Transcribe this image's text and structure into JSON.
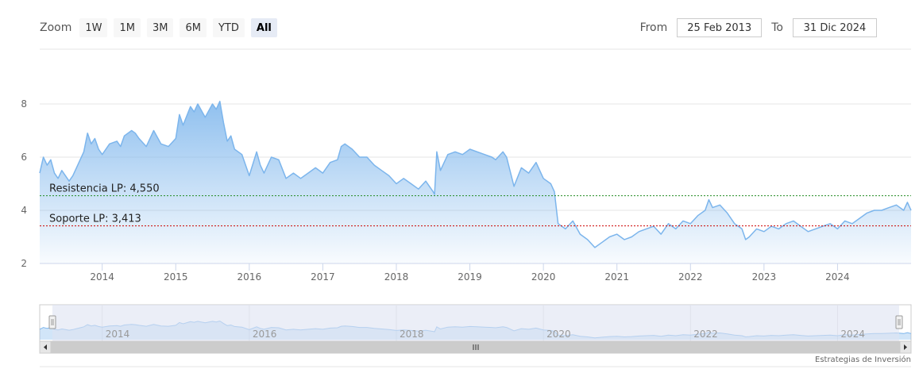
{
  "zoom": {
    "label": "Zoom",
    "buttons": [
      "1W",
      "1M",
      "3M",
      "6M",
      "YTD",
      "All"
    ],
    "active": "All"
  },
  "range": {
    "from_label": "From",
    "from_value": "25 Feb 2013",
    "to_label": "To",
    "to_value": "31 Dic 2024"
  },
  "credit": "Estrategias de Inversión",
  "colors": {
    "line": "#7cb5ec",
    "resistance": "#228B22",
    "support": "#cc0000",
    "navigator_mask": "#dde3f2"
  },
  "chart_data": {
    "type": "area",
    "x_unit": "year (decimal)",
    "xlim": [
      2013.15,
      2025.0
    ],
    "ylim": [
      2,
      8
    ],
    "y_ticks": [
      2,
      4,
      6,
      8
    ],
    "x_ticks": [
      "2014",
      "2015",
      "2016",
      "2017",
      "2018",
      "2019",
      "2020",
      "2021",
      "2022",
      "2023",
      "2024"
    ],
    "navigator_ticks": [
      "2014",
      "2016",
      "2018",
      "2020",
      "2022",
      "2024"
    ],
    "grid": true,
    "reference_lines": [
      {
        "label": "Resistencia LP: 4,550",
        "value": 4.55,
        "color": "#228B22"
      },
      {
        "label": "Soporte LP: 3,413",
        "value": 3.413,
        "color": "#cc0000"
      }
    ],
    "series": [
      {
        "x": [
          2013.15,
          2013.2,
          2013.25,
          2013.3,
          2013.35,
          2013.4,
          2013.45,
          2013.5,
          2013.55,
          2013.6,
          2013.65,
          2013.7,
          2013.75,
          2013.8,
          2013.85,
          2013.9,
          2013.95,
          2014.0,
          2014.1,
          2014.2,
          2014.25,
          2014.3,
          2014.4,
          2014.45,
          2014.5,
          2014.6,
          2014.7,
          2014.8,
          2014.9,
          2015.0,
          2015.05,
          2015.1,
          2015.2,
          2015.25,
          2015.3,
          2015.4,
          2015.5,
          2015.55,
          2015.6,
          2015.65,
          2015.7,
          2015.75,
          2015.8,
          2015.9,
          2016.0,
          2016.1,
          2016.15,
          2016.2,
          2016.3,
          2016.4,
          2016.5,
          2016.6,
          2016.7,
          2016.8,
          2016.9,
          2017.0,
          2017.1,
          2017.2,
          2017.25,
          2017.3,
          2017.4,
          2017.5,
          2017.6,
          2017.7,
          2017.8,
          2017.9,
          2018.0,
          2018.1,
          2018.2,
          2018.3,
          2018.4,
          2018.5,
          2018.52,
          2018.55,
          2018.6,
          2018.7,
          2018.8,
          2018.9,
          2019.0,
          2019.1,
          2019.2,
          2019.3,
          2019.35,
          2019.45,
          2019.5,
          2019.6,
          2019.7,
          2019.8,
          2019.9,
          2020.0,
          2020.1,
          2020.15,
          2020.2,
          2020.3,
          2020.4,
          2020.5,
          2020.6,
          2020.7,
          2020.8,
          2020.9,
          2021.0,
          2021.1,
          2021.2,
          2021.3,
          2021.4,
          2021.5,
          2021.6,
          2021.7,
          2021.8,
          2021.9,
          2022.0,
          2022.1,
          2022.2,
          2022.25,
          2022.3,
          2022.4,
          2022.5,
          2022.6,
          2022.7,
          2022.75,
          2022.8,
          2022.9,
          2023.0,
          2023.1,
          2023.2,
          2023.3,
          2023.4,
          2023.5,
          2023.6,
          2023.7,
          2023.8,
          2023.9,
          2024.0,
          2024.1,
          2024.2,
          2024.3,
          2024.4,
          2024.5,
          2024.6,
          2024.7,
          2024.8,
          2024.9,
          2024.95,
          2025.0
        ],
        "values": [
          5.4,
          6.0,
          5.7,
          5.9,
          5.4,
          5.2,
          5.5,
          5.3,
          5.1,
          5.3,
          5.6,
          5.9,
          6.2,
          6.9,
          6.5,
          6.7,
          6.3,
          6.1,
          6.5,
          6.6,
          6.4,
          6.8,
          7.0,
          6.9,
          6.7,
          6.4,
          7.0,
          6.5,
          6.4,
          6.7,
          7.6,
          7.2,
          7.9,
          7.7,
          8.0,
          7.5,
          8.0,
          7.8,
          8.1,
          7.3,
          6.6,
          6.8,
          6.3,
          6.1,
          5.3,
          6.2,
          5.7,
          5.4,
          6.0,
          5.9,
          5.2,
          5.4,
          5.2,
          5.4,
          5.6,
          5.4,
          5.8,
          5.9,
          6.4,
          6.5,
          6.3,
          6.0,
          6.0,
          5.7,
          5.5,
          5.3,
          5.0,
          5.2,
          5.0,
          4.8,
          5.1,
          4.7,
          4.6,
          6.2,
          5.5,
          6.1,
          6.2,
          6.1,
          6.3,
          6.2,
          6.1,
          6.0,
          5.9,
          6.2,
          6.0,
          4.9,
          5.6,
          5.4,
          5.8,
          5.2,
          5.0,
          4.7,
          3.5,
          3.3,
          3.6,
          3.1,
          2.9,
          2.6,
          2.8,
          3.0,
          3.1,
          2.9,
          3.0,
          3.2,
          3.3,
          3.4,
          3.1,
          3.5,
          3.3,
          3.6,
          3.5,
          3.8,
          4.0,
          4.4,
          4.1,
          4.2,
          3.9,
          3.5,
          3.3,
          2.9,
          3.0,
          3.3,
          3.2,
          3.4,
          3.3,
          3.5,
          3.6,
          3.4,
          3.2,
          3.3,
          3.4,
          3.5,
          3.3,
          3.6,
          3.5,
          3.7,
          3.9,
          4.0,
          4.0,
          4.1,
          4.2,
          4.0,
          4.3,
          4.0
        ]
      }
    ]
  }
}
